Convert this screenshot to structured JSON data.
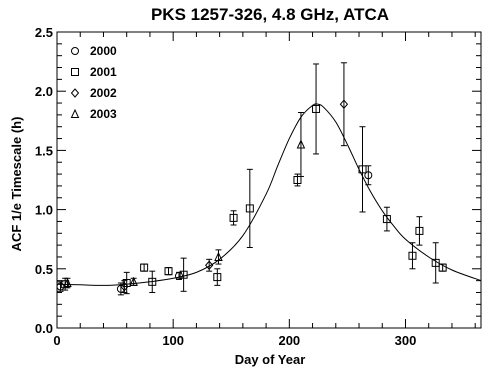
{
  "chart_data": {
    "type": "scatter",
    "title": "PKS 1257-326, 4.8 GHz, ATCA",
    "xlabel": "Day of Year",
    "ylabel": "ACF 1/e Timescale (h)",
    "xlim": [
      0,
      365
    ],
    "ylim": [
      0,
      2.5
    ],
    "x_ticks": [
      0,
      100,
      200,
      300
    ],
    "x_tick_labels": [
      "0",
      "100",
      "200",
      "300"
    ],
    "y_ticks": [
      0,
      0.5,
      1.0,
      1.5,
      2.0,
      2.5
    ],
    "y_tick_labels": [
      "0.0",
      "0.5",
      "1.0",
      "1.5",
      "2.0",
      "2.5"
    ],
    "grid": false,
    "legend_position": "top-left",
    "series": [
      {
        "name": "2000",
        "marker": "circle",
        "points": [
          {
            "x": 3,
            "y": 0.35,
            "err": 0.04
          },
          {
            "x": 55,
            "y": 0.33,
            "err": 0.05
          },
          {
            "x": 105,
            "y": 0.44,
            "err": 0.03
          },
          {
            "x": 268,
            "y": 1.29,
            "err": 0.08
          }
        ]
      },
      {
        "name": "2001",
        "marker": "square",
        "points": [
          {
            "x": 7,
            "y": 0.37,
            "err": 0.05
          },
          {
            "x": 60,
            "y": 0.38,
            "err": 0.09
          },
          {
            "x": 75,
            "y": 0.51,
            "err": 0.03
          },
          {
            "x": 82,
            "y": 0.39,
            "err": 0.09
          },
          {
            "x": 96,
            "y": 0.48,
            "err": 0.03
          },
          {
            "x": 109,
            "y": 0.45,
            "err": 0.14
          },
          {
            "x": 138,
            "y": 0.43,
            "err": 0.07
          },
          {
            "x": 152,
            "y": 0.93,
            "err": 0.06
          },
          {
            "x": 166,
            "y": 1.01,
            "err": 0.33
          },
          {
            "x": 207,
            "y": 1.25,
            "err": 0.05
          },
          {
            "x": 223,
            "y": 1.85,
            "err": 0.38
          },
          {
            "x": 263,
            "y": 1.34,
            "err": 0.36
          },
          {
            "x": 284,
            "y": 0.92,
            "err": 0.1
          },
          {
            "x": 306,
            "y": 0.61,
            "err": 0.11
          },
          {
            "x": 312,
            "y": 0.82,
            "err": 0.12
          },
          {
            "x": 326,
            "y": 0.55,
            "err": 0.17
          },
          {
            "x": 332,
            "y": 0.51,
            "err": 0.03
          }
        ]
      },
      {
        "name": "2002",
        "marker": "diamond",
        "points": [
          {
            "x": 58,
            "y": 0.35,
            "err": 0.05
          },
          {
            "x": 131,
            "y": 0.53,
            "err": 0.05
          },
          {
            "x": 247,
            "y": 1.89,
            "err": 0.35
          }
        ]
      },
      {
        "name": "2003",
        "marker": "triangle",
        "points": [
          {
            "x": 9,
            "y": 0.38,
            "err": 0.04
          },
          {
            "x": 66,
            "y": 0.39,
            "err": 0.03
          },
          {
            "x": 139,
            "y": 0.6,
            "err": 0.06
          },
          {
            "x": 210,
            "y": 1.55,
            "err": 0.27
          }
        ]
      }
    ],
    "fit_curve": {
      "x": [
        0,
        20,
        40,
        60,
        80,
        100,
        120,
        140,
        160,
        180,
        190,
        200,
        210,
        220,
        225,
        230,
        240,
        250,
        260,
        270,
        280,
        290,
        300,
        320,
        340,
        365
      ],
      "y": [
        0.37,
        0.365,
        0.36,
        0.37,
        0.39,
        0.42,
        0.47,
        0.58,
        0.78,
        1.13,
        1.37,
        1.6,
        1.78,
        1.88,
        1.89,
        1.86,
        1.74,
        1.55,
        1.34,
        1.15,
        0.99,
        0.86,
        0.75,
        0.6,
        0.49,
        0.4
      ]
    }
  }
}
